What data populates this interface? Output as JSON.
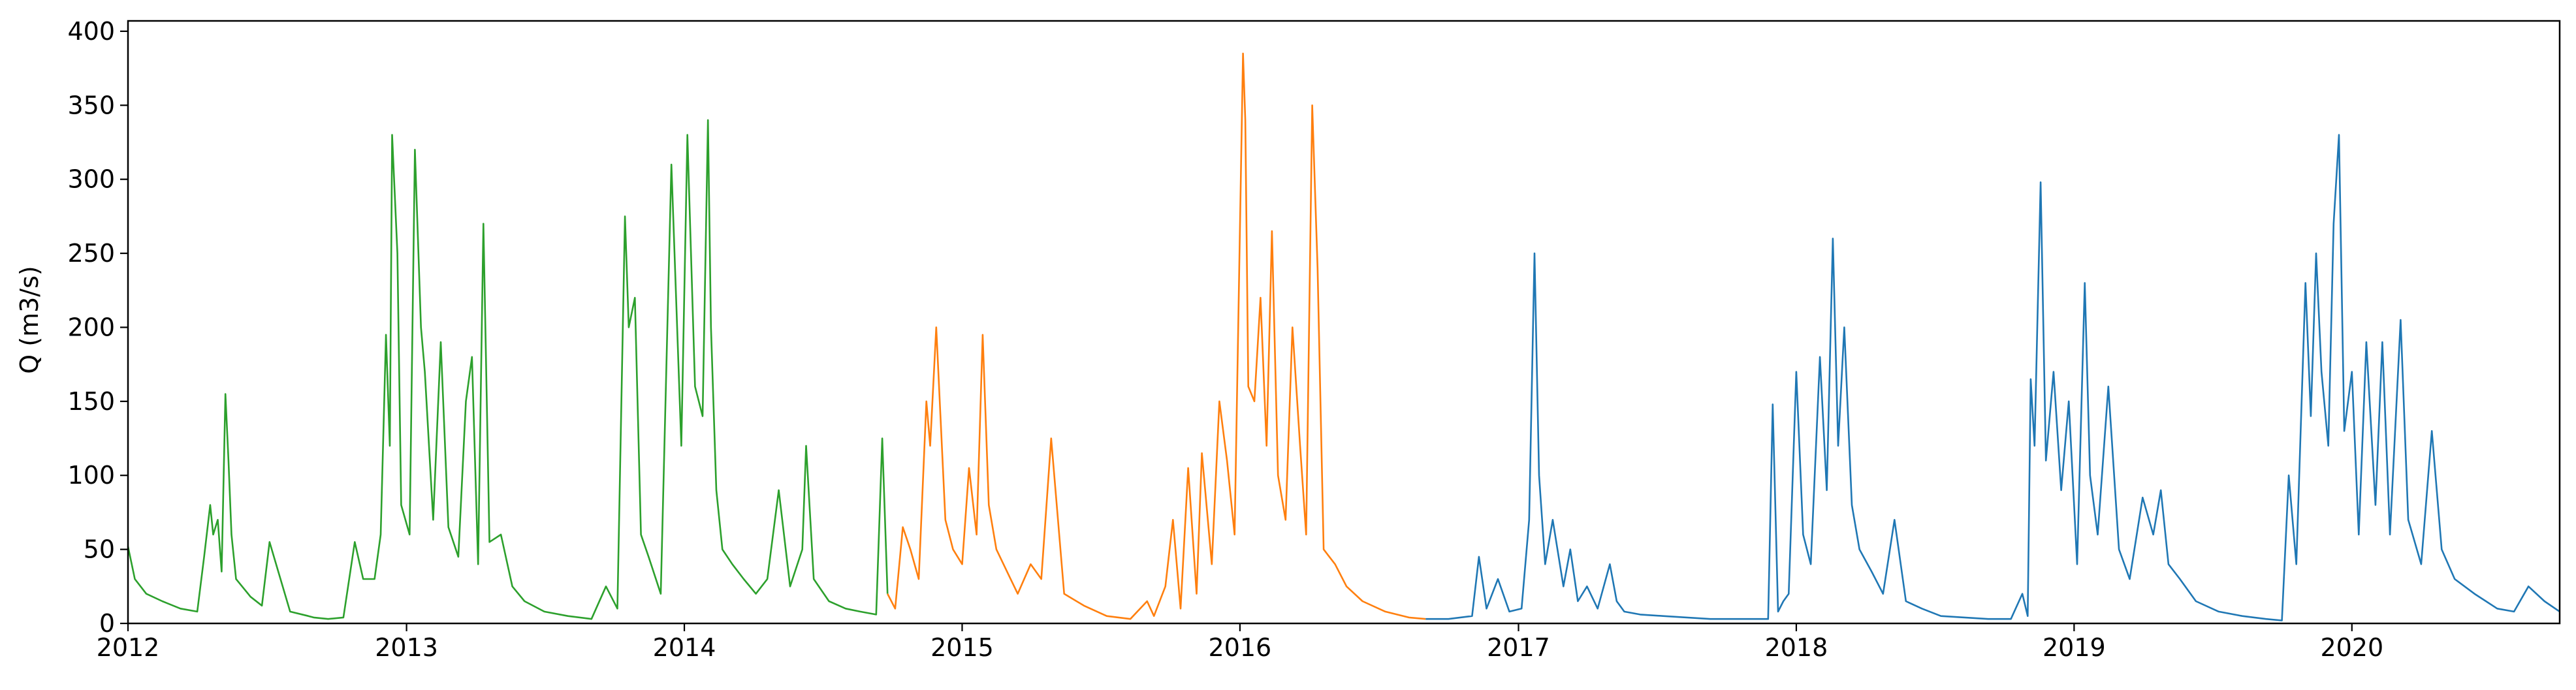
{
  "chart_data": {
    "type": "line",
    "title": "",
    "xlabel": "",
    "ylabel": "Q (m3/s)",
    "xlim": [
      "2012-01-01",
      "2020-09-30"
    ],
    "ylim": [
      0,
      407
    ],
    "grid": false,
    "legend": "none",
    "x_ticks": [
      "2012",
      "2013",
      "2014",
      "2015",
      "2016",
      "2017",
      "2018",
      "2019",
      "2020"
    ],
    "y_ticks": [
      "0",
      "50",
      "100",
      "150",
      "200",
      "250",
      "300",
      "350",
      "400"
    ],
    "series": [
      {
        "color": "#2ca02c",
        "x": [
          "2012-01-01",
          "2012-01-10",
          "2012-01-25",
          "2012-02-15",
          "2012-03-10",
          "2012-04-01",
          "2012-04-10",
          "2012-04-18",
          "2012-04-22",
          "2012-04-28",
          "2012-05-03",
          "2012-05-08",
          "2012-05-12",
          "2012-05-16",
          "2012-05-22",
          "2012-06-10",
          "2012-06-25",
          "2012-07-05",
          "2012-08-01",
          "2012-08-25",
          "2012-09-01",
          "2012-09-20",
          "2012-10-10",
          "2012-10-25",
          "2012-11-05",
          "2012-11-20",
          "2012-11-28",
          "2012-12-05",
          "2012-12-10",
          "2012-12-13",
          "2012-12-20",
          "2012-12-25",
          "2013-01-05",
          "2013-01-12",
          "2013-01-20",
          "2013-01-25",
          "2013-02-05",
          "2013-02-15",
          "2013-02-25",
          "2013-03-10",
          "2013-03-20",
          "2013-03-28",
          "2013-04-05",
          "2013-04-12",
          "2013-04-20",
          "2013-05-05",
          "2013-05-20",
          "2013-06-05",
          "2013-07-01",
          "2013-08-01",
          "2013-09-01",
          "2013-09-20",
          "2013-10-05",
          "2013-10-15",
          "2013-10-20",
          "2013-10-28",
          "2013-11-05",
          "2013-11-15",
          "2013-12-01",
          "2013-12-15",
          "2013-12-28",
          "2014-01-05",
          "2014-01-15",
          "2014-01-25",
          "2014-02-01",
          "2014-02-05",
          "2014-02-12",
          "2014-02-20",
          "2014-03-05",
          "2014-03-20",
          "2014-04-05",
          "2014-04-20",
          "2014-05-05",
          "2014-05-20",
          "2014-06-05",
          "2014-06-10",
          "2014-06-20",
          "2014-07-10",
          "2014-08-01",
          "2014-08-20",
          "2014-09-10",
          "2014-09-18",
          "2014-09-25"
        ],
        "values": [
          52,
          30,
          20,
          15,
          10,
          8,
          45,
          80,
          60,
          70,
          35,
          155,
          110,
          60,
          30,
          18,
          12,
          55,
          8,
          5,
          4,
          3,
          4,
          55,
          30,
          30,
          60,
          195,
          120,
          330,
          250,
          80,
          60,
          320,
          200,
          170,
          70,
          190,
          65,
          45,
          150,
          180,
          40,
          270,
          55,
          60,
          25,
          15,
          8,
          5,
          3,
          25,
          10,
          275,
          200,
          220,
          60,
          45,
          20,
          310,
          120,
          330,
          160,
          140,
          340,
          200,
          90,
          50,
          40,
          30,
          20,
          30,
          90,
          25,
          50,
          120,
          30,
          15,
          10,
          8,
          6,
          125,
          20
        ]
      },
      {
        "color": "#ff7f0e",
        "x": [
          "2014-09-25",
          "2014-10-05",
          "2014-10-15",
          "2014-10-25",
          "2014-11-05",
          "2014-11-15",
          "2014-11-20",
          "2014-11-28",
          "2014-12-10",
          "2014-12-20",
          "2015-01-01",
          "2015-01-10",
          "2015-01-20",
          "2015-01-28",
          "2015-02-05",
          "2015-02-15",
          "2015-03-01",
          "2015-03-15",
          "2015-04-01",
          "2015-04-15",
          "2015-04-28",
          "2015-05-15",
          "2015-06-10",
          "2015-07-10",
          "2015-08-10",
          "2015-09-01",
          "2015-09-10",
          "2015-09-25",
          "2015-10-05",
          "2015-10-15",
          "2015-10-25",
          "2015-11-05",
          "2015-11-12",
          "2015-11-25",
          "2015-12-05",
          "2015-12-15",
          "2015-12-25",
          "2016-01-05",
          "2016-01-08",
          "2016-01-12",
          "2016-01-20",
          "2016-01-28",
          "2016-02-05",
          "2016-02-12",
          "2016-02-20",
          "2016-03-01",
          "2016-03-10",
          "2016-03-20",
          "2016-03-28",
          "2016-04-05",
          "2016-04-12",
          "2016-04-20",
          "2016-05-05",
          "2016-05-20",
          "2016-06-10",
          "2016-07-10",
          "2016-08-10",
          "2016-09-01"
        ],
        "values": [
          20,
          10,
          65,
          50,
          30,
          150,
          120,
          200,
          70,
          50,
          40,
          105,
          60,
          195,
          80,
          50,
          35,
          20,
          40,
          30,
          125,
          20,
          12,
          5,
          3,
          15,
          5,
          25,
          70,
          10,
          105,
          20,
          115,
          40,
          150,
          110,
          60,
          385,
          340,
          160,
          150,
          220,
          120,
          265,
          100,
          70,
          200,
          120,
          60,
          350,
          240,
          50,
          40,
          25,
          15,
          8,
          4,
          3
        ]
      },
      {
        "color": "#1f77b4",
        "x": [
          "2016-09-01",
          "2016-10-01",
          "2016-11-01",
          "2016-11-10",
          "2016-11-20",
          "2016-12-05",
          "2016-12-20",
          "2017-01-05",
          "2017-01-15",
          "2017-01-22",
          "2017-01-28",
          "2017-02-05",
          "2017-02-15",
          "2017-03-01",
          "2017-03-10",
          "2017-03-20",
          "2017-04-01",
          "2017-04-15",
          "2017-05-01",
          "2017-05-10",
          "2017-05-20",
          "2017-06-10",
          "2017-07-10",
          "2017-08-10",
          "2017-09-10",
          "2017-10-10",
          "2017-11-10",
          "2017-11-25",
          "2017-12-01",
          "2017-12-08",
          "2017-12-15",
          "2017-12-22",
          "2018-01-01",
          "2018-01-10",
          "2018-01-20",
          "2018-02-01",
          "2018-02-10",
          "2018-02-18",
          "2018-02-25",
          "2018-03-05",
          "2018-03-15",
          "2018-03-25",
          "2018-04-10",
          "2018-04-25",
          "2018-05-10",
          "2018-05-25",
          "2018-06-15",
          "2018-07-10",
          "2018-08-10",
          "2018-09-10",
          "2018-10-10",
          "2018-10-25",
          "2018-11-01",
          "2018-11-05",
          "2018-11-10",
          "2018-11-18",
          "2018-11-25",
          "2018-12-05",
          "2018-12-15",
          "2018-12-25",
          "2019-01-05",
          "2019-01-15",
          "2019-01-22",
          "2019-02-01",
          "2019-02-15",
          "2019-03-01",
          "2019-03-15",
          "2019-04-01",
          "2019-04-15",
          "2019-04-25",
          "2019-05-05",
          "2019-05-20",
          "2019-06-10",
          "2019-07-10",
          "2019-08-10",
          "2019-09-10",
          "2019-10-01",
          "2019-10-10",
          "2019-10-20",
          "2019-11-01",
          "2019-11-08",
          "2019-11-15",
          "2019-11-22",
          "2019-12-01",
          "2019-12-08",
          "2019-12-15",
          "2019-12-22",
          "2020-01-01",
          "2020-01-10",
          "2020-01-20",
          "2020-02-01",
          "2020-02-10",
          "2020-02-20",
          "2020-03-05",
          "2020-03-15",
          "2020-04-01",
          "2020-04-15",
          "2020-04-28",
          "2020-05-15",
          "2020-06-10",
          "2020-07-10",
          "2020-08-01",
          "2020-08-20",
          "2020-09-10",
          "2020-09-30"
        ],
        "values": [
          3,
          3,
          5,
          45,
          10,
          30,
          8,
          10,
          70,
          250,
          100,
          40,
          70,
          25,
          50,
          15,
          25,
          10,
          40,
          15,
          8,
          6,
          5,
          4,
          3,
          3,
          3,
          3,
          148,
          8,
          15,
          20,
          170,
          60,
          40,
          180,
          90,
          260,
          120,
          200,
          80,
          50,
          35,
          20,
          70,
          15,
          10,
          5,
          4,
          3,
          3,
          20,
          5,
          165,
          120,
          298,
          110,
          170,
          90,
          150,
          40,
          230,
          100,
          60,
          160,
          50,
          30,
          85,
          60,
          90,
          40,
          30,
          15,
          8,
          5,
          3,
          2,
          100,
          40,
          230,
          140,
          250,
          170,
          120,
          270,
          330,
          130,
          170,
          60,
          190,
          80,
          190,
          60,
          205,
          70,
          40,
          130,
          50,
          30,
          20,
          10,
          8,
          25,
          15,
          8
        ]
      }
    ]
  }
}
